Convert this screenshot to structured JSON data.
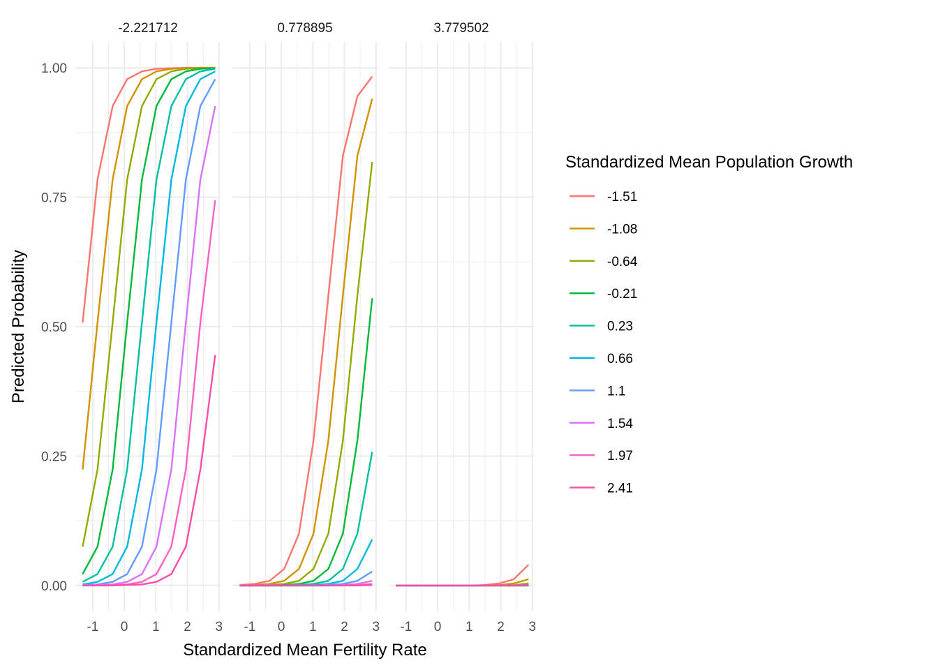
{
  "chart_data": {
    "type": "line",
    "facet_labels": [
      "-2.221712",
      "0.778895",
      "3.779502"
    ],
    "xlabel": "Standardized Mean Fertility Rate",
    "ylabel": "Predicted Probability",
    "xlim": [
      -1.55,
      3.05
    ],
    "ylim": [
      -0.05,
      1.05
    ],
    "x_ticks": [
      -1,
      0,
      1,
      2,
      3
    ],
    "x_tick_labels": [
      "-1",
      "0",
      "1",
      "2",
      "3"
    ],
    "y_ticks": [
      0,
      0.25,
      0.5,
      0.75,
      1.0
    ],
    "y_tick_labels": [
      "0.00",
      "0.25",
      "0.50",
      "0.75",
      "1.00"
    ],
    "grid": true,
    "legend": {
      "title": "Standardized Mean Population Growth",
      "position": "right",
      "entries": [
        "-1.51",
        "-1.08",
        "-0.64",
        "-0.21",
        "0.23",
        "0.66",
        "1.1",
        "1.54",
        "1.97",
        "2.41"
      ]
    },
    "series_colors": [
      "#F8766D",
      "#D39200",
      "#93AA00",
      "#00BA38",
      "#00C19F",
      "#00B9E3",
      "#619CFF",
      "#DB72FB",
      "#FF61C3",
      "#F54FA9"
    ],
    "x": [
      -1.32,
      -0.85,
      -0.37,
      0.09,
      0.56,
      1.02,
      1.49,
      1.95,
      2.41,
      2.88
    ],
    "panels": [
      {
        "facet": "-2.221712",
        "series": [
          {
            "name": "-1.51",
            "values": [
              0.508,
              0.784,
              0.926,
              0.978,
              0.993,
              0.998,
              0.999,
              1.0,
              1.0,
              1.0
            ]
          },
          {
            "name": "-1.08",
            "values": [
              0.224,
              0.508,
              0.784,
              0.926,
              0.978,
              0.993,
              0.998,
              0.999,
              1.0,
              1.0
            ]
          },
          {
            "name": "-0.64",
            "values": [
              0.075,
              0.224,
              0.508,
              0.784,
              0.926,
              0.978,
              0.993,
              0.998,
              0.999,
              1.0
            ]
          },
          {
            "name": "-0.21",
            "values": [
              0.022,
              0.075,
              0.224,
              0.508,
              0.784,
              0.926,
              0.978,
              0.993,
              0.998,
              0.999
            ]
          },
          {
            "name": "0.23",
            "values": [
              0.007,
              0.022,
              0.075,
              0.224,
              0.508,
              0.784,
              0.926,
              0.978,
              0.993,
              0.998
            ]
          },
          {
            "name": "0.66",
            "values": [
              0.002,
              0.007,
              0.022,
              0.075,
              0.224,
              0.508,
              0.784,
              0.926,
              0.978,
              0.993
            ]
          },
          {
            "name": "1.1",
            "values": [
              0.001,
              0.002,
              0.007,
              0.022,
              0.075,
              0.224,
              0.508,
              0.784,
              0.926,
              0.978
            ]
          },
          {
            "name": "1.54",
            "values": [
              0.0,
              0.001,
              0.002,
              0.007,
              0.022,
              0.075,
              0.224,
              0.508,
              0.784,
              0.926
            ]
          },
          {
            "name": "1.97",
            "values": [
              0.0,
              0.0,
              0.001,
              0.002,
              0.007,
              0.022,
              0.075,
              0.224,
              0.508,
              0.744
            ]
          },
          {
            "name": "2.41",
            "values": [
              0.0,
              0.0,
              0.0,
              0.001,
              0.002,
              0.007,
              0.022,
              0.075,
              0.224,
              0.445
            ]
          }
        ]
      },
      {
        "facet": "0.778895",
        "series": [
          {
            "name": "-1.51",
            "values": [
              0.001,
              0.003,
              0.009,
              0.032,
              0.1,
              0.28,
              0.56,
              0.83,
              0.945,
              0.983
            ]
          },
          {
            "name": "-1.08",
            "values": [
              0.0,
              0.001,
              0.003,
              0.009,
              0.032,
              0.1,
              0.28,
              0.56,
              0.83,
              0.94
            ]
          },
          {
            "name": "-0.64",
            "values": [
              0.0,
              0.0,
              0.001,
              0.003,
              0.009,
              0.032,
              0.1,
              0.28,
              0.56,
              0.818
            ]
          },
          {
            "name": "-0.21",
            "values": [
              0.0,
              0.0,
              0.0,
              0.001,
              0.003,
              0.009,
              0.032,
              0.1,
              0.28,
              0.555
            ]
          },
          {
            "name": "0.23",
            "values": [
              0.0,
              0.0,
              0.0,
              0.0,
              0.001,
              0.003,
              0.009,
              0.032,
              0.1,
              0.258
            ]
          },
          {
            "name": "0.66",
            "values": [
              0.0,
              0.0,
              0.0,
              0.0,
              0.0,
              0.001,
              0.003,
              0.009,
              0.032,
              0.089
            ]
          },
          {
            "name": "1.1",
            "values": [
              0.0,
              0.0,
              0.0,
              0.0,
              0.0,
              0.0,
              0.001,
              0.003,
              0.009,
              0.027
            ]
          },
          {
            "name": "1.54",
            "values": [
              0.0,
              0.0,
              0.0,
              0.0,
              0.0,
              0.0,
              0.0,
              0.001,
              0.003,
              0.009
            ]
          },
          {
            "name": "1.97",
            "values": [
              0.0,
              0.0,
              0.0,
              0.0,
              0.0,
              0.0,
              0.0,
              0.0,
              0.001,
              0.003
            ]
          },
          {
            "name": "2.41",
            "values": [
              0.0,
              0.0,
              0.0,
              0.0,
              0.0,
              0.0,
              0.0,
              0.0,
              0.0,
              0.001
            ]
          }
        ]
      },
      {
        "facet": "3.779502",
        "series": [
          {
            "name": "-1.51",
            "values": [
              0.0,
              0.0,
              0.0,
              0.0,
              0.0,
              0.0,
              0.001,
              0.004,
              0.012,
              0.04
            ]
          },
          {
            "name": "-1.08",
            "values": [
              0.0,
              0.0,
              0.0,
              0.0,
              0.0,
              0.0,
              0.0,
              0.001,
              0.004,
              0.012
            ]
          },
          {
            "name": "-0.64",
            "values": [
              0.0,
              0.0,
              0.0,
              0.0,
              0.0,
              0.0,
              0.0,
              0.0,
              0.001,
              0.004
            ]
          },
          {
            "name": "-0.21",
            "values": [
              0.0,
              0.0,
              0.0,
              0.0,
              0.0,
              0.0,
              0.0,
              0.0,
              0.0,
              0.001
            ]
          },
          {
            "name": "0.23",
            "values": [
              0.0,
              0.0,
              0.0,
              0.0,
              0.0,
              0.0,
              0.0,
              0.0,
              0.0,
              0.0
            ]
          },
          {
            "name": "0.66",
            "values": [
              0.0,
              0.0,
              0.0,
              0.0,
              0.0,
              0.0,
              0.0,
              0.0,
              0.0,
              0.0
            ]
          },
          {
            "name": "1.1",
            "values": [
              0.0,
              0.0,
              0.0,
              0.0,
              0.0,
              0.0,
              0.0,
              0.0,
              0.0,
              0.0
            ]
          },
          {
            "name": "1.54",
            "values": [
              0.0,
              0.0,
              0.0,
              0.0,
              0.0,
              0.0,
              0.0,
              0.0,
              0.0,
              0.0
            ]
          },
          {
            "name": "1.97",
            "values": [
              0.0,
              0.0,
              0.0,
              0.0,
              0.0,
              0.0,
              0.0,
              0.0,
              0.0,
              0.0
            ]
          },
          {
            "name": "2.41",
            "values": [
              0.0,
              0.0,
              0.0,
              0.0,
              0.0,
              0.0,
              0.0,
              0.0,
              0.0,
              0.0
            ]
          }
        ]
      }
    ]
  }
}
